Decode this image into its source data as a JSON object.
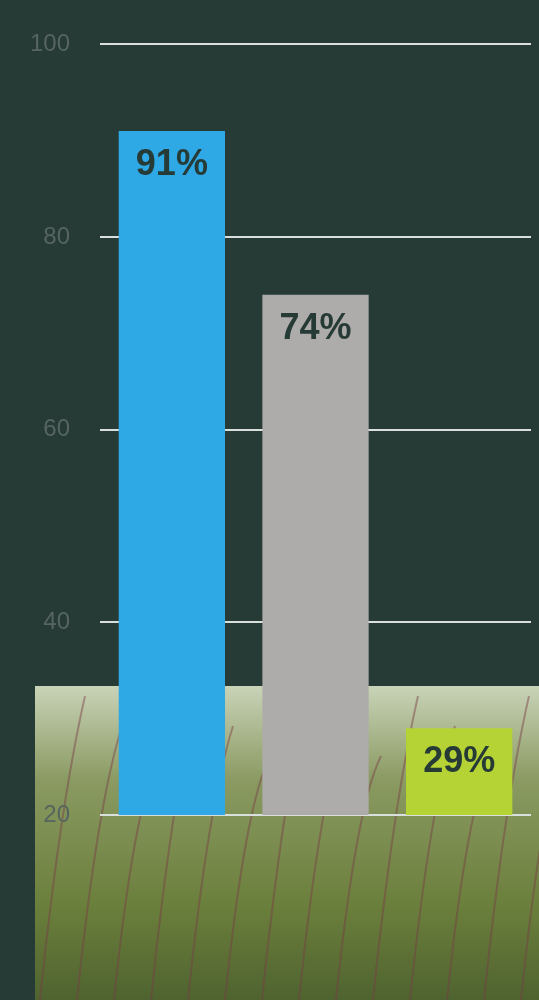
{
  "chart_data": {
    "type": "bar",
    "categories": [
      null,
      null,
      null
    ],
    "values": [
      91,
      74,
      29
    ],
    "value_labels": [
      "91%",
      "74%",
      "29%"
    ],
    "colors": [
      "#2ea9e6",
      "#aeabab",
      "#b5d334"
    ],
    "ylim": [
      20,
      100
    ],
    "yticks": [
      20,
      40,
      60,
      80,
      100
    ],
    "grid": true,
    "data_labels": true,
    "tick_labels": "y"
  }
}
